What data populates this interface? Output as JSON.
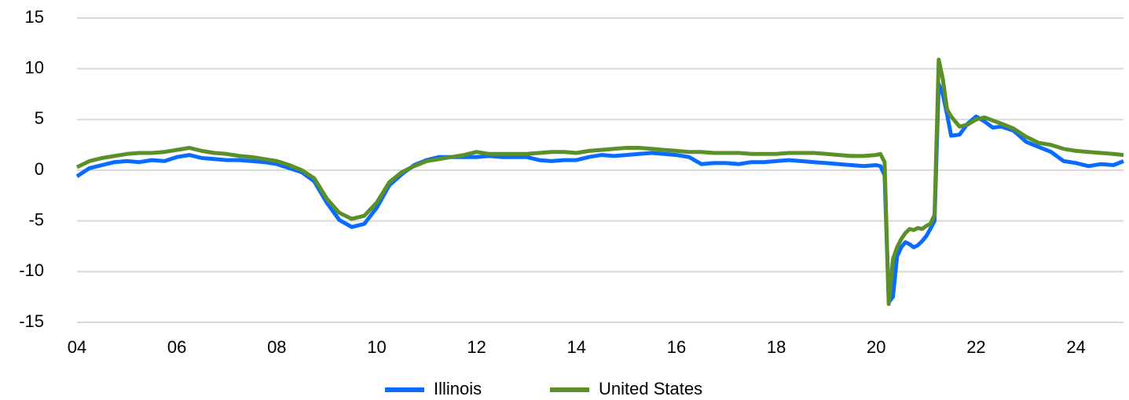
{
  "chart_data": {
    "type": "line",
    "x": [
      2004,
      2004.25,
      2004.5,
      2004.75,
      2005,
      2005.25,
      2005.5,
      2005.75,
      2006,
      2006.25,
      2006.5,
      2006.75,
      2007,
      2007.25,
      2007.5,
      2007.75,
      2008,
      2008.25,
      2008.5,
      2008.75,
      2009,
      2009.25,
      2009.5,
      2009.75,
      2010,
      2010.25,
      2010.5,
      2010.75,
      2011,
      2011.25,
      2011.5,
      2011.75,
      2012,
      2012.25,
      2012.5,
      2012.75,
      2013,
      2013.25,
      2013.5,
      2013.75,
      2014,
      2014.25,
      2014.5,
      2014.75,
      2015,
      2015.25,
      2015.5,
      2015.75,
      2016,
      2016.25,
      2016.5,
      2016.75,
      2017,
      2017.25,
      2017.5,
      2017.75,
      2018,
      2018.25,
      2018.5,
      2018.75,
      2019,
      2019.25,
      2019.5,
      2019.75,
      2020,
      2020.083,
      2020.167,
      2020.25,
      2020.333,
      2020.417,
      2020.5,
      2020.583,
      2020.667,
      2020.75,
      2020.833,
      2020.917,
      2021,
      2021.083,
      2021.167,
      2021.25,
      2021.333,
      2021.417,
      2021.5,
      2021.667,
      2021.833,
      2022,
      2022.167,
      2022.333,
      2022.5,
      2022.75,
      2023,
      2023.25,
      2023.5,
      2023.75,
      2024,
      2024.25,
      2024.5,
      2024.75,
      2024.95
    ],
    "series": [
      {
        "name": "Illinois",
        "color": "#0a6cff",
        "values": [
          -0.6,
          0.2,
          0.5,
          0.8,
          0.9,
          0.8,
          1.0,
          0.9,
          1.3,
          1.5,
          1.2,
          1.1,
          1.0,
          1.0,
          0.9,
          0.8,
          0.6,
          0.2,
          -0.2,
          -1.1,
          -3.2,
          -4.9,
          -5.6,
          -5.3,
          -3.7,
          -1.5,
          -0.4,
          0.5,
          1.0,
          1.3,
          1.3,
          1.3,
          1.3,
          1.4,
          1.3,
          1.3,
          1.3,
          1.0,
          0.9,
          1.0,
          1.0,
          1.3,
          1.5,
          1.4,
          1.5,
          1.6,
          1.7,
          1.6,
          1.5,
          1.3,
          0.6,
          0.7,
          0.7,
          0.6,
          0.8,
          0.8,
          0.9,
          1.0,
          0.9,
          0.8,
          0.7,
          0.6,
          0.5,
          0.4,
          0.5,
          0.4,
          -0.5,
          -13.0,
          -12.5,
          -8.5,
          -7.6,
          -7.1,
          -7.3,
          -7.6,
          -7.4,
          -7.0,
          -6.5,
          -5.8,
          -5.0,
          8.5,
          7.5,
          5.5,
          3.4,
          3.5,
          4.6,
          5.3,
          4.8,
          4.2,
          4.3,
          3.9,
          2.8,
          2.3,
          1.8,
          0.9,
          0.7,
          0.4,
          0.6,
          0.5,
          0.9
        ]
      },
      {
        "name": "United States",
        "color": "#5a8f29",
        "values": [
          0.3,
          0.9,
          1.2,
          1.4,
          1.6,
          1.7,
          1.7,
          1.8,
          2.0,
          2.2,
          1.9,
          1.7,
          1.6,
          1.4,
          1.3,
          1.1,
          0.9,
          0.5,
          0.0,
          -0.8,
          -2.8,
          -4.2,
          -4.8,
          -4.5,
          -3.2,
          -1.2,
          -0.2,
          0.4,
          0.9,
          1.1,
          1.3,
          1.5,
          1.8,
          1.6,
          1.6,
          1.6,
          1.6,
          1.7,
          1.8,
          1.8,
          1.7,
          1.9,
          2.0,
          2.1,
          2.2,
          2.2,
          2.1,
          2.0,
          1.9,
          1.8,
          1.8,
          1.7,
          1.7,
          1.7,
          1.6,
          1.6,
          1.6,
          1.7,
          1.7,
          1.7,
          1.6,
          1.5,
          1.4,
          1.4,
          1.5,
          1.6,
          0.8,
          -13.2,
          -8.8,
          -7.6,
          -6.8,
          -6.2,
          -5.8,
          -5.9,
          -5.7,
          -5.8,
          -5.5,
          -5.3,
          -4.4,
          10.9,
          9.0,
          6.0,
          5.3,
          4.3,
          4.5,
          5.0,
          5.2,
          4.9,
          4.6,
          4.1,
          3.3,
          2.7,
          2.5,
          2.1,
          1.9,
          1.8,
          1.7,
          1.6,
          1.5
        ]
      }
    ],
    "xlim": [
      2004,
      2024.95
    ],
    "xticks": [
      {
        "value": 2004,
        "label": "04"
      },
      {
        "value": 2006,
        "label": "06"
      },
      {
        "value": 2008,
        "label": "08"
      },
      {
        "value": 2010,
        "label": "10"
      },
      {
        "value": 2012,
        "label": "12"
      },
      {
        "value": 2014,
        "label": "14"
      },
      {
        "value": 2016,
        "label": "16"
      },
      {
        "value": 2018,
        "label": "18"
      },
      {
        "value": 2020,
        "label": "20"
      },
      {
        "value": 2022,
        "label": "22"
      },
      {
        "value": 2024,
        "label": "24"
      }
    ],
    "ylim": [
      -15,
      15
    ],
    "yticks": [
      -15,
      -10,
      -5,
      0,
      5,
      10,
      15
    ],
    "grid": true,
    "legend": "bottom"
  }
}
